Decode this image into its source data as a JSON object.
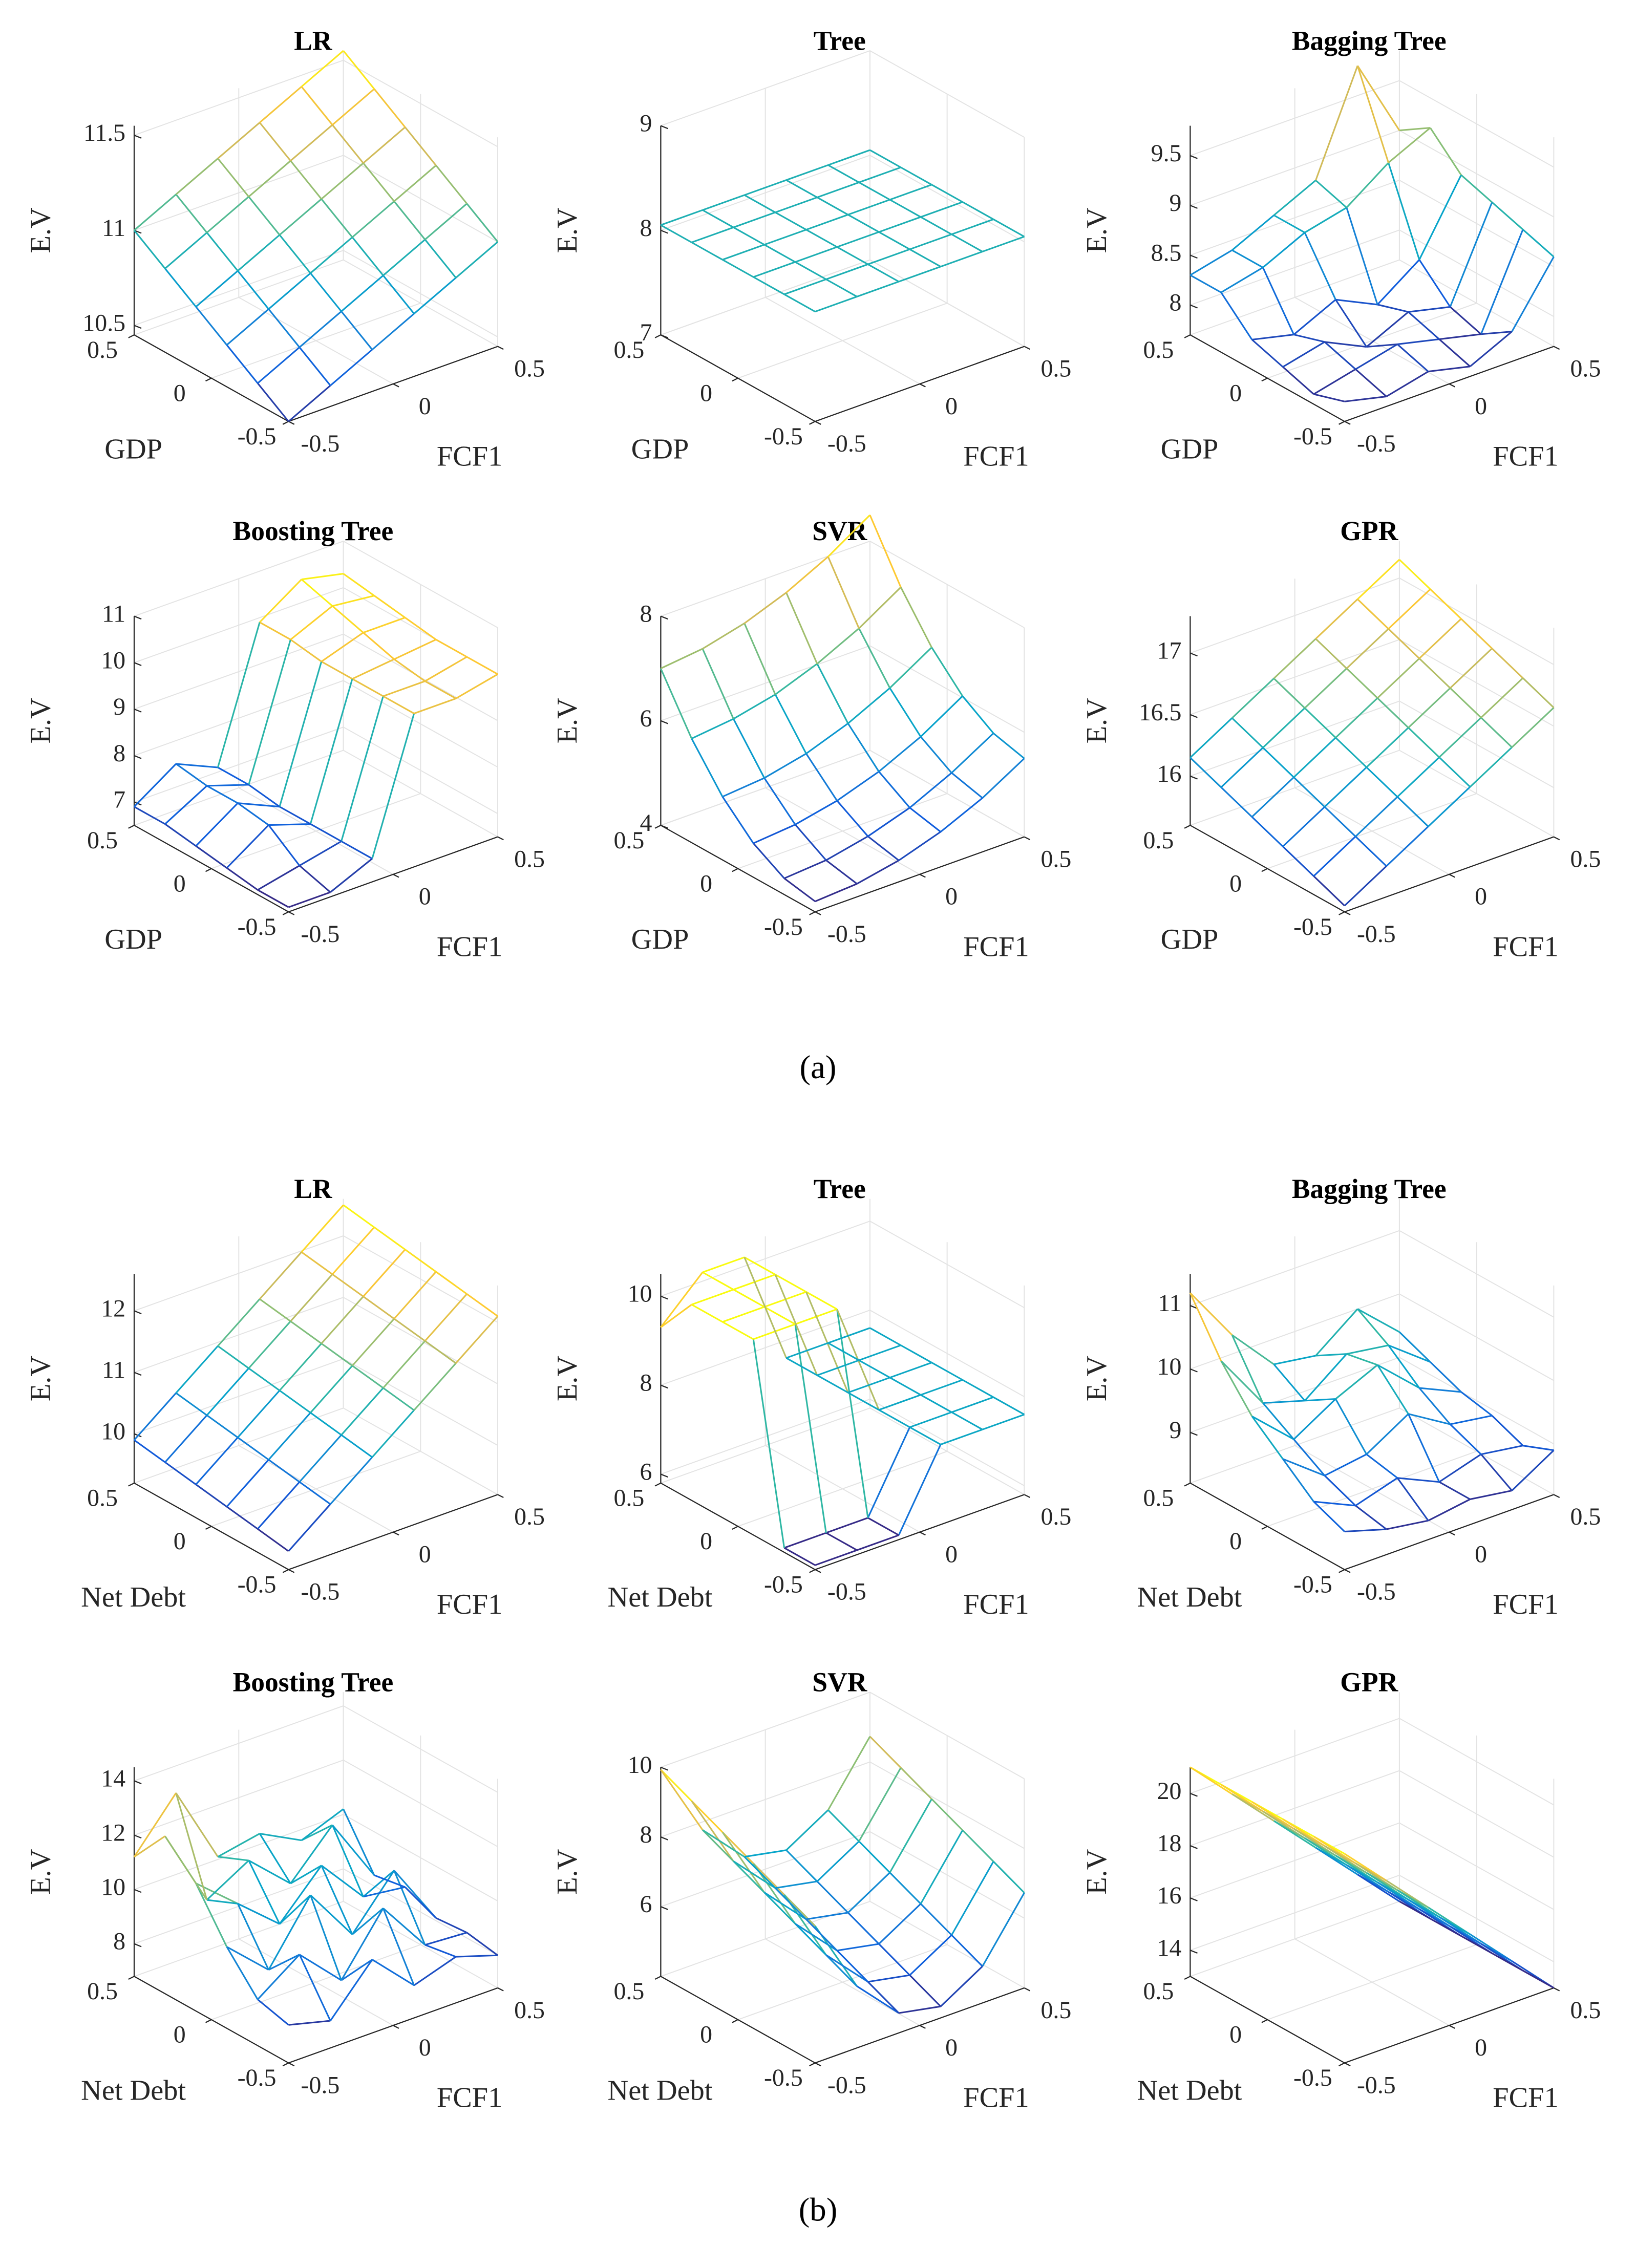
{
  "captions": [
    "(a)",
    "(b)"
  ],
  "colormap": [
    "#352a87",
    "#0f5cdd",
    "#1481d6",
    "#06a4ca",
    "#2eb7a4",
    "#87bf77",
    "#d1bb59",
    "#fec832",
    "#f9fb0e"
  ],
  "chart_data": [
    {
      "type": "surface",
      "title": "LR",
      "xlabel": "FCF1",
      "ylabel": "GDP",
      "zlabel": "E.V",
      "x": [
        -0.5,
        -0.3,
        -0.1,
        0.1,
        0.3,
        0.5
      ],
      "y": [
        -0.5,
        -0.3,
        -0.1,
        0.1,
        0.3,
        0.5
      ],
      "z": [
        [
          10.45,
          10.56,
          10.67,
          10.78,
          10.89,
          11
        ],
        [
          10.56,
          10.67,
          10.78,
          10.89,
          11,
          11.11
        ],
        [
          10.67,
          10.78,
          10.89,
          11,
          11.11,
          11.22
        ],
        [
          10.78,
          10.89,
          11,
          11.11,
          11.22,
          11.33
        ],
        [
          10.89,
          11,
          11.11,
          11.22,
          11.33,
          11.44
        ],
        [
          11,
          11.11,
          11.22,
          11.33,
          11.44,
          11.55
        ]
      ],
      "xlim": [
        -0.5,
        0.5
      ],
      "ylim": [
        -0.5,
        0.5
      ],
      "zlim": [
        10.45,
        11.55
      ],
      "xticks": [
        -0.5,
        0,
        0.5
      ],
      "yticks": [
        -0.5,
        0,
        0.5
      ],
      "zticks": [
        10.5,
        11,
        11.5
      ]
    },
    {
      "type": "surface",
      "title": "Tree",
      "xlabel": "FCF1",
      "ylabel": "GDP",
      "zlabel": "E.V",
      "x": [
        -0.5,
        -0.3,
        -0.1,
        0.1,
        0.3,
        0.5
      ],
      "y": [
        -0.5,
        -0.3,
        -0.1,
        0.1,
        0.3,
        0.5
      ],
      "z": [
        [
          8.05,
          8.05,
          8.05,
          8.05,
          8.05,
          8.05
        ],
        [
          8.05,
          8.05,
          8.05,
          8.05,
          8.05,
          8.05
        ],
        [
          8.05,
          8.05,
          8.05,
          8.05,
          8.05,
          8.05
        ],
        [
          8.05,
          8.05,
          8.05,
          8.05,
          8.05,
          8.05
        ],
        [
          8.05,
          8.05,
          8.05,
          8.05,
          8.05,
          8.05
        ],
        [
          8.05,
          8.05,
          8.05,
          8.05,
          8.05,
          8.05
        ]
      ],
      "xlim": [
        -0.5,
        0.5
      ],
      "ylim": [
        -0.5,
        0.5
      ],
      "zlim": [
        7,
        9
      ],
      "xticks": [
        -0.5,
        0,
        0.5
      ],
      "yticks": [
        -0.5,
        0,
        0.5
      ],
      "zticks": [
        7,
        8,
        9
      ]
    },
    {
      "type": "surface",
      "title": "Bagging Tree",
      "xlabel": "FCF1",
      "ylabel": "GDP",
      "zlabel": "E.V",
      "x": [
        -0.5,
        -0.3,
        -0.1,
        0.1,
        0.3,
        0.5
      ],
      "y": [
        -0.5,
        -0.3,
        -0.1,
        0.1,
        0.3,
        0.5
      ],
      "z": [
        [
          7.9,
          7.8,
          7.9,
          7.8,
          8.0,
          8.6
        ],
        [
          7.8,
          7.9,
          8.0,
          7.9,
          7.8,
          8.7
        ],
        [
          7.9,
          8.0,
          7.8,
          8.0,
          7.9,
          8.8
        ],
        [
          8.0,
          7.9,
          8.1,
          7.9,
          8.2,
          8.9
        ],
        [
          8.3,
          8.4,
          8.6,
          8.7,
          9.0,
          9.2
        ],
        [
          8.3,
          8.4,
          8.6,
          8.8,
          9.8,
          9.0
        ]
      ],
      "xlim": [
        -0.5,
        0.5
      ],
      "ylim": [
        -0.5,
        0.5
      ],
      "zlim": [
        7.7,
        9.8
      ],
      "xticks": [
        -0.5,
        0,
        0.5
      ],
      "yticks": [
        -0.5,
        0,
        0.5
      ],
      "zticks": [
        8,
        8.5,
        9,
        9.5
      ]
    },
    {
      "type": "surface",
      "title": "Boosting Tree",
      "xlabel": "FCF1",
      "ylabel": "GDP",
      "zlabel": "E.V",
      "x": [
        -0.5,
        -0.3,
        -0.1,
        0.1,
        0.3,
        0.5
      ],
      "y": [
        -0.5,
        -0.3,
        -0.1,
        0.1,
        0.3,
        0.5
      ],
      "z": [
        [
          6.6,
          6.6,
          7.0,
          9.8,
          9.8,
          10.0
        ],
        [
          6.6,
          6.8,
          7.0,
          9.8,
          9.8,
          10.0
        ],
        [
          6.7,
          7.3,
          7.0,
          9.8,
          9.9,
          10.0
        ],
        [
          6.8,
          7.4,
          7.0,
          9.8,
          10.1,
          10.1
        ],
        [
          6.9,
          7.4,
          7.1,
          9.9,
          10.3,
          10.2
        ],
        [
          6.9,
          7.5,
          7.1,
          9.9,
          10.5,
          10.3
        ]
      ],
      "xlim": [
        -0.5,
        0.5
      ],
      "ylim": [
        -0.5,
        0.5
      ],
      "zlim": [
        6.5,
        11
      ],
      "xticks": [
        -0.5,
        0,
        0.5
      ],
      "yticks": [
        -0.5,
        0,
        0.5
      ],
      "zticks": [
        7,
        8,
        9,
        10,
        11
      ]
    },
    {
      "type": "surface",
      "title": "SVR",
      "xlabel": "FCF1",
      "ylabel": "GDP",
      "zlabel": "E.V",
      "x": [
        -0.5,
        -0.3,
        -0.1,
        0.1,
        0.3,
        0.5
      ],
      "y": [
        -0.5,
        -0.3,
        -0.1,
        0.1,
        0.3,
        0.5
      ],
      "z": [
        [
          4.2,
          4.25,
          4.41,
          4.67,
          5.03,
          5.5
        ],
        [
          4.31,
          4.37,
          4.54,
          4.8,
          5.18,
          5.65
        ],
        [
          4.65,
          4.72,
          4.89,
          5.16,
          5.54,
          6.03
        ],
        [
          5.21,
          5.28,
          5.46,
          5.75,
          6.14,
          6.63
        ],
        [
          5.99,
          6.08,
          6.26,
          6.56,
          6.95,
          7.45
        ],
        [
          7.0,
          7.09,
          7.29,
          7.59,
          7.99,
          8.5
        ]
      ],
      "xlim": [
        -0.5,
        0.5
      ],
      "ylim": [
        -0.5,
        0.5
      ],
      "zlim": [
        4,
        8
      ],
      "xticks": [
        -0.5,
        0,
        0.5
      ],
      "yticks": [
        -0.5,
        0,
        0.5
      ],
      "zticks": [
        4,
        6,
        8
      ]
    },
    {
      "type": "surface",
      "title": "GPR",
      "xlabel": "FCF1",
      "ylabel": "GDP",
      "zlabel": "E.V",
      "x": [
        -0.5,
        -0.3,
        -0.1,
        0.1,
        0.3,
        0.5
      ],
      "y": [
        -0.5,
        -0.3,
        -0.1,
        0.1,
        0.3,
        0.5
      ],
      "z": [
        [
          15.65,
          15.85,
          16.05,
          16.25,
          16.45,
          16.65
        ],
        [
          15.75,
          15.95,
          16.15,
          16.35,
          16.55,
          16.75
        ],
        [
          15.85,
          16.05,
          16.25,
          16.45,
          16.65,
          16.85
        ],
        [
          15.95,
          16.15,
          16.35,
          16.55,
          16.75,
          16.95
        ],
        [
          16.05,
          16.25,
          16.45,
          16.65,
          16.85,
          17.05
        ],
        [
          16.15,
          16.35,
          16.55,
          16.75,
          16.95,
          17.15
        ]
      ],
      "xlim": [
        -0.5,
        0.5
      ],
      "ylim": [
        -0.5,
        0.5
      ],
      "zlim": [
        15.6,
        17.3
      ],
      "xticks": [
        -0.5,
        0,
        0.5
      ],
      "yticks": [
        -0.5,
        0,
        0.5
      ],
      "zticks": [
        16,
        16.5,
        17
      ]
    },
    {
      "type": "surface",
      "title": "LR",
      "xlabel": "FCF1",
      "ylabel": "Net Debt",
      "zlabel": "E.V",
      "x": [
        -0.5,
        -0.3,
        -0.1,
        0.1,
        0.3,
        0.5
      ],
      "y": [
        -0.5,
        -0.3,
        -0.1,
        0.1,
        0.3,
        0.5
      ],
      "z": [
        [
          9.5,
          10.02,
          10.54,
          11.06,
          11.58,
          12.1
        ],
        [
          9.58,
          10.1,
          10.62,
          11.14,
          11.66,
          12.18
        ],
        [
          9.66,
          10.18,
          10.7,
          11.22,
          11.74,
          12.26
        ],
        [
          9.74,
          10.26,
          10.78,
          11.3,
          11.82,
          12.34
        ],
        [
          9.82,
          10.34,
          10.86,
          11.38,
          11.9,
          12.42
        ],
        [
          9.9,
          10.42,
          10.94,
          11.46,
          11.98,
          12.5
        ]
      ],
      "xlim": [
        -0.5,
        0.5
      ],
      "ylim": [
        -0.5,
        0.5
      ],
      "zlim": [
        9.2,
        12.6
      ],
      "xticks": [
        -0.5,
        0,
        0.5
      ],
      "yticks": [
        -0.5,
        0,
        0.5
      ],
      "zticks": [
        10,
        11,
        12
      ]
    },
    {
      "type": "surface",
      "title": "Tree",
      "xlabel": "FCF1",
      "ylabel": "Net Debt",
      "zlabel": "E.V",
      "x": [
        -0.5,
        -0.3,
        -0.1,
        0.1,
        0.3,
        0.5
      ],
      "y": [
        -0.5,
        -0.3,
        -0.1,
        0.1,
        0.3,
        0.5
      ],
      "z": [
        [
          5.9,
          5.9,
          5.9,
          7.6,
          7.6,
          7.6
        ],
        [
          5.9,
          5.9,
          5.9,
          7.6,
          7.6,
          7.6
        ],
        [
          10.2,
          10.2,
          10.2,
          7.6,
          7.6,
          7.6
        ],
        [
          10.2,
          10.2,
          10.2,
          7.6,
          7.6,
          7.6
        ],
        [
          10.2,
          10.2,
          10.2,
          7.6,
          7.6,
          7.6
        ],
        [
          9.3,
          10.2,
          10.2,
          7.6,
          7.6,
          7.6
        ]
      ],
      "xlim": [
        -0.5,
        0.5
      ],
      "ylim": [
        -0.5,
        0.5
      ],
      "zlim": [
        5.8,
        10.5
      ],
      "xticks": [
        -0.5,
        0,
        0.5
      ],
      "yticks": [
        -0.5,
        0,
        0.5
      ],
      "zticks": [
        6,
        8,
        10
      ]
    },
    {
      "type": "surface",
      "title": "Bagging Tree",
      "xlabel": "FCF1",
      "ylabel": "Net Debt",
      "zlabel": "E.V",
      "x": [
        -0.5,
        -0.3,
        -0.1,
        0.1,
        0.3,
        0.5
      ],
      "y": [
        -0.5,
        -0.3,
        -0.1,
        0.1,
        0.3,
        0.5
      ],
      "z": [
        [
          8.8,
          8.6,
          8.5,
          8.6,
          8.5,
          8.9
        ],
        [
          9.0,
          8.7,
          8.9,
          8.6,
          8.8,
          8.7
        ],
        [
          9.4,
          8.9,
          9.0,
          9.4,
          9.0,
          8.9
        ],
        [
          9.8,
          9.2,
          9.6,
          9.9,
          9.3,
          9.0
        ],
        [
          10.4,
          9.5,
          9.3,
          9.8,
          9.7,
          9.2
        ],
        [
          11.2,
          10.3,
          9.6,
          9.5,
          10.0,
          9.4
        ]
      ],
      "xlim": [
        -0.5,
        0.5
      ],
      "ylim": [
        -0.5,
        0.5
      ],
      "zlim": [
        8.2,
        11.5
      ],
      "xticks": [
        -0.5,
        0,
        0.5
      ],
      "yticks": [
        -0.5,
        0,
        0.5
      ],
      "zticks": [
        9,
        10,
        11
      ]
    },
    {
      "type": "surface",
      "title": "Boosting Tree",
      "xlabel": "FCF1",
      "ylabel": "Net Debt",
      "zlabel": "E.V",
      "x": [
        -0.5,
        -0.3,
        -0.1,
        0.1,
        0.3,
        0.5
      ],
      "y": [
        -0.5,
        -0.3,
        -0.1,
        0.1,
        0.3,
        0.5
      ],
      "z": [
        [
          8.2,
          7.8,
          9.5,
          8.0,
          8.5,
          8.0
        ],
        [
          8.5,
          9.6,
          8.1,
          10.2,
          8.3,
          8.2
        ],
        [
          9.8,
          8.4,
          10.6,
          8.6,
          10.4,
          8.1
        ],
        [
          11.5,
          10.2,
          8.9,
          10.5,
          8.8,
          8.6
        ],
        [
          12.6,
          9.7,
          10.6,
          9.2,
          10.8,
          8.4
        ],
        [
          11.2,
          13.0,
          10.1,
          10.4,
          9.6,
          10.2
        ]
      ],
      "xlim": [
        -0.5,
        0.5
      ],
      "ylim": [
        -0.5,
        0.5
      ],
      "zlim": [
        6.8,
        14.5
      ],
      "xticks": [
        -0.5,
        0,
        0.5
      ],
      "yticks": [
        -0.5,
        0,
        0.5
      ],
      "zticks": [
        8,
        10,
        12,
        14
      ]
    },
    {
      "type": "surface",
      "title": "SVR",
      "xlabel": "FCF1",
      "ylabel": "Net Debt",
      "zlabel": "E.V",
      "x": [
        -0.5,
        -0.3,
        -0.1,
        0.1,
        0.3,
        0.5
      ],
      "y": [
        -0.5,
        -0.3,
        -0.1,
        0.1,
        0.3,
        0.5
      ],
      "z": [
        [
          7.93,
          5.77,
          4.57,
          4.33,
          5.05,
          6.73
        ],
        [
          8.33,
          6.17,
          4.97,
          4.73,
          5.45,
          7.13
        ],
        [
          8.73,
          6.57,
          5.37,
          5.13,
          5.85,
          7.53
        ],
        [
          9.13,
          6.97,
          5.77,
          5.53,
          6.25,
          7.93
        ],
        [
          9.53,
          7.37,
          6.17,
          5.93,
          6.65,
          8.33
        ],
        [
          9.93,
          7.77,
          6.57,
          6.33,
          7.05,
          8.73
        ]
      ],
      "xlim": [
        -0.5,
        0.5
      ],
      "ylim": [
        -0.5,
        0.5
      ],
      "zlim": [
        4,
        10
      ],
      "xticks": [
        -0.5,
        0,
        0.5
      ],
      "yticks": [
        -0.5,
        0,
        0.5
      ],
      "zticks": [
        6,
        8,
        10
      ]
    },
    {
      "type": "surface",
      "title": "GPR",
      "xlabel": "FCF1",
      "ylabel": "Net Debt",
      "zlabel": "E.V",
      "x": [
        -0.5,
        -0.3,
        -0.1,
        0.1,
        0.3,
        0.5
      ],
      "y": [
        -0.5,
        -0.3,
        -0.1,
        0.1,
        0.3,
        0.5
      ],
      "z": [
        [
          21,
          19.4,
          17.8,
          16.2,
          14.6,
          13
        ],
        [
          21,
          19.4,
          17.8,
          16.2,
          14.6,
          13
        ],
        [
          21,
          19.4,
          17.8,
          16.2,
          14.6,
          13
        ],
        [
          21,
          19.4,
          17.8,
          16.2,
          14.6,
          13
        ],
        [
          21,
          19.4,
          17.8,
          16.2,
          14.6,
          13
        ],
        [
          21,
          19.4,
          17.8,
          16.2,
          14.6,
          13
        ]
      ],
      "xlim": [
        -0.5,
        0.5
      ],
      "ylim": [
        -0.5,
        0.5
      ],
      "zlim": [
        13,
        21
      ],
      "xticks": [
        -0.5,
        0,
        0.5
      ],
      "yticks": [
        -0.5,
        0,
        0.5
      ],
      "zticks": [
        14,
        16,
        18,
        20
      ]
    }
  ]
}
